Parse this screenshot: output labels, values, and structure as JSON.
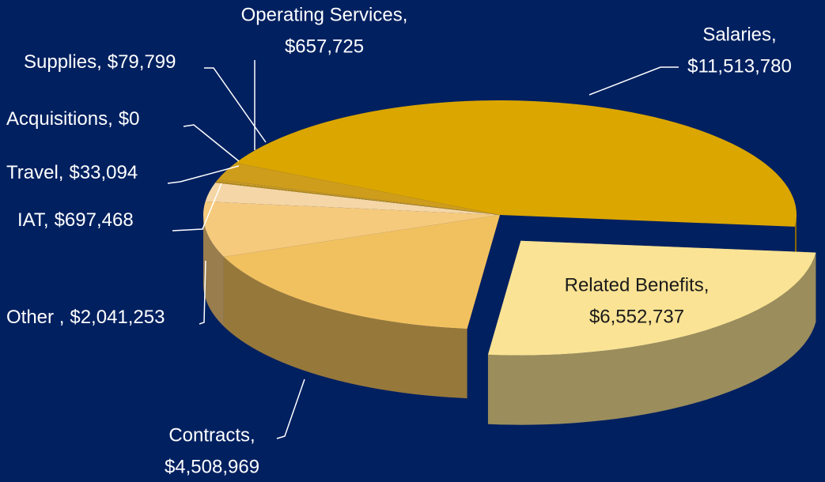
{
  "chart_data": {
    "type": "pie",
    "categories": [
      "Salaries,",
      "Related Benefits,",
      "Contracts,",
      "Other ,",
      "IAT,",
      "Travel,",
      "Acquisitions,",
      "Supplies,",
      "Operating Services,"
    ],
    "values": [
      11513780,
      6552737,
      4508969,
      2041253,
      697468,
      33094,
      0,
      79799,
      657725
    ],
    "value_labels": [
      "$11,513,780",
      "$6,552,737",
      "$4,508,969",
      "$2,041,253",
      "$697,468",
      "$33,094",
      "$0",
      "$79,799",
      "$657,725"
    ],
    "colors": [
      "#dba600",
      "#fae394",
      "#f2c15f",
      "#f6ca7c",
      "#f5d6a6",
      "#b58a10",
      "#b58a10",
      "#c79a25",
      "#cf9d1c"
    ],
    "exploded": "Related Benefits,"
  }
}
